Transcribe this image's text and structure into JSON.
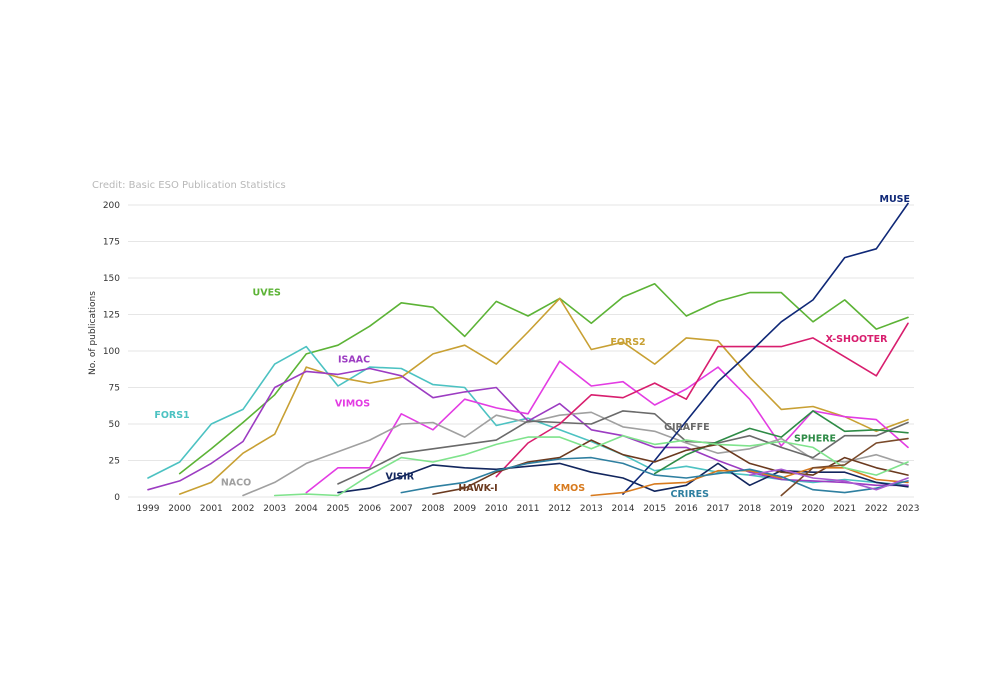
{
  "chart_data": {
    "type": "line",
    "credit": "Credit: Basic ESO Publication Statistics",
    "title": "",
    "xlabel": "",
    "ylabel": "No. of publications",
    "ylim": [
      0,
      200
    ],
    "yticks": [
      0,
      25,
      50,
      75,
      100,
      125,
      150,
      175,
      200
    ],
    "x": [
      "1999",
      "2000",
      "2001",
      "2002",
      "2003",
      "2004",
      "2005",
      "2006",
      "2007",
      "2008",
      "2009",
      "2010",
      "2011",
      "2012",
      "2013",
      "2014",
      "2015",
      "2016",
      "2017",
      "2018",
      "2019",
      "2020",
      "2021",
      "2022",
      "2023"
    ],
    "grid": "horizontal",
    "legend": "inline labels",
    "series": [
      {
        "name": "UVES",
        "color": "#5cb336",
        "label_at": [
          2002.3,
          138
        ],
        "values": [
          null,
          16,
          33,
          51,
          70,
          98,
          104,
          117,
          133,
          130,
          110,
          134,
          124,
          136,
          119,
          137,
          146,
          124,
          134,
          140,
          140,
          120,
          135,
          115,
          123
        ]
      },
      {
        "name": "FORS1",
        "color": "#4cc2c2",
        "label_at": [
          1999.2,
          54
        ],
        "values": [
          13,
          24,
          50,
          60,
          91,
          103,
          76,
          89,
          88,
          77,
          75,
          49,
          54,
          46,
          38,
          29,
          18,
          21,
          17,
          15,
          12,
          10,
          12,
          10,
          8
        ]
      },
      {
        "name": "FORS2",
        "color": "#c8a033",
        "label_at": [
          2013.6,
          104
        ],
        "values": [
          null,
          2,
          10,
          30,
          43,
          89,
          82,
          78,
          82,
          98,
          104,
          91,
          113,
          136,
          101,
          106,
          91,
          109,
          107,
          82,
          60,
          62,
          55,
          45,
          53
        ]
      },
      {
        "name": "ISAAC",
        "color": "#9c3cc2",
        "label_at": [
          2005.0,
          92
        ],
        "values": [
          5,
          11,
          23,
          38,
          75,
          86,
          84,
          88,
          83,
          68,
          72,
          75,
          52,
          64,
          46,
          42,
          34,
          34,
          25,
          17,
          12,
          11,
          10,
          8,
          8
        ]
      },
      {
        "name": "VIMOS",
        "color": "#e33ce3",
        "label_at": [
          2004.9,
          62
        ],
        "values": [
          null,
          null,
          null,
          null,
          null,
          3,
          20,
          20,
          57,
          46,
          67,
          61,
          57,
          93,
          76,
          79,
          63,
          74,
          89,
          67,
          35,
          59,
          55,
          53,
          34
        ]
      },
      {
        "name": "NACO",
        "color": "#a0a0a0",
        "label_at": [
          2001.3,
          8
        ],
        "values": [
          null,
          null,
          null,
          1,
          10,
          23,
          31,
          39,
          50,
          51,
          41,
          56,
          51,
          56,
          58,
          48,
          45,
          37,
          30,
          33,
          40,
          26,
          24,
          29,
          22
        ]
      },
      {
        "name": "GIRAFFE",
        "color": "#6a6a6a",
        "label_at": [
          2015.3,
          46
        ],
        "values": [
          null,
          null,
          null,
          null,
          null,
          null,
          9,
          19,
          30,
          33,
          36,
          39,
          52,
          51,
          50,
          59,
          57,
          38,
          37,
          42,
          34,
          27,
          42,
          42,
          51
        ]
      },
      {
        "name": "SPHERE",
        "color": "#2e8b46",
        "label_at": [
          2019.4,
          38
        ],
        "values": [
          null,
          null,
          null,
          null,
          null,
          null,
          null,
          null,
          null,
          null,
          null,
          null,
          null,
          null,
          null,
          null,
          16,
          29,
          38,
          47,
          41,
          59,
          45,
          46,
          44
        ]
      },
      {
        "name": "X-SHOOTER",
        "color": "#d81e6e",
        "label_at": [
          2020.4,
          106
        ],
        "values": [
          null,
          null,
          null,
          null,
          null,
          null,
          null,
          null,
          null,
          null,
          null,
          14,
          37,
          50,
          70,
          68,
          78,
          67,
          103,
          103,
          103,
          109,
          96,
          83,
          119
        ]
      },
      {
        "name": "MUSE",
        "color": "#0f2877",
        "label_at": [
          2022.1,
          202
        ],
        "values": [
          null,
          null,
          null,
          null,
          null,
          null,
          null,
          null,
          null,
          null,
          null,
          null,
          null,
          null,
          null,
          2,
          25,
          52,
          79,
          99,
          120,
          135,
          164,
          170,
          201
        ]
      },
      {
        "name": "VISIR",
        "color": "#12265e",
        "label_at": [
          2006.5,
          12
        ],
        "values": [
          null,
          null,
          null,
          null,
          null,
          null,
          3,
          6,
          14,
          22,
          20,
          19,
          21,
          23,
          17,
          13,
          4,
          8,
          23,
          8,
          18,
          17,
          17,
          10,
          7
        ]
      },
      {
        "name": "HAWK-I",
        "color": "#6b3a1f",
        "label_at": [
          2008.8,
          4
        ],
        "values": [
          null,
          null,
          null,
          null,
          null,
          null,
          null,
          null,
          null,
          2,
          6,
          17,
          24,
          27,
          39,
          29,
          24,
          32,
          36,
          23,
          17,
          15,
          27,
          20,
          15
        ]
      },
      {
        "name": "KMOS",
        "color": "#d77a1e",
        "label_at": [
          2011.8,
          4
        ],
        "values": [
          null,
          null,
          null,
          null,
          null,
          null,
          null,
          null,
          null,
          null,
          null,
          null,
          null,
          null,
          1,
          3,
          9,
          10,
          18,
          18,
          13,
          20,
          20,
          12,
          10
        ]
      },
      {
        "name": "CRIRES",
        "color": "#2e7fa0",
        "label_at": [
          2015.5,
          0
        ],
        "values": [
          null,
          null,
          null,
          null,
          null,
          null,
          null,
          null,
          3,
          7,
          10,
          18,
          23,
          26,
          27,
          23,
          15,
          13,
          16,
          19,
          14,
          5,
          3,
          6,
          11
        ]
      },
      {
        "name": "",
        "color": "#7fe38c",
        "label_at": null,
        "values": [
          null,
          null,
          null,
          null,
          1,
          2,
          1,
          15,
          27,
          24,
          29,
          36,
          41,
          41,
          33,
          42,
          36,
          39,
          36,
          35,
          38,
          34,
          20,
          15,
          24
        ]
      },
      {
        "name": "",
        "color": "#7a4a2a",
        "label_at": null,
        "values": [
          null,
          null,
          null,
          null,
          null,
          null,
          null,
          null,
          null,
          null,
          null,
          null,
          null,
          null,
          null,
          null,
          null,
          null,
          null,
          null,
          1,
          20,
          22,
          37,
          40
        ]
      },
      {
        "name": "",
        "color": "#a85ad1",
        "label_at": null,
        "values": [
          null,
          null,
          null,
          null,
          null,
          null,
          null,
          null,
          null,
          null,
          null,
          null,
          null,
          null,
          null,
          null,
          null,
          null,
          null,
          15,
          19,
          13,
          11,
          5,
          13
        ]
      }
    ]
  }
}
